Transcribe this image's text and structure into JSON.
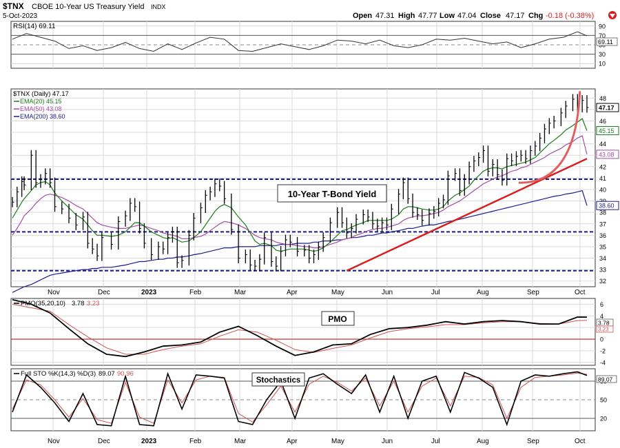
{
  "header": {
    "symbol": "$TNX",
    "name": "CBOE 10-Year US Treasury Yield",
    "exchange": "INDX",
    "date": "5-Oct-2023",
    "open_label": "Open",
    "open": "47.31",
    "high_label": "High",
    "high": "47.77",
    "low_label": "Low",
    "low": "47.04",
    "close_label": "Close",
    "close": "47.17",
    "chg_label": "Chg",
    "chg": "-0.18 (-0.38%)"
  },
  "colors": {
    "grid": "#d9d9d9",
    "frame": "#333333",
    "price": "#000000",
    "ema20": "#1a7a1a",
    "ema50": "#a64ca6",
    "ema200": "#1a1a8c",
    "trend": "#d62020",
    "support": "#1a1a8c",
    "pmo_signal": "#d05050",
    "chg_neg": "#d62020"
  },
  "x_axis": {
    "labels": [
      "Nov",
      "Dec",
      "2023",
      "Feb",
      "Mar",
      "Apr",
      "May",
      "Jun",
      "Jul",
      "Aug",
      "Sep",
      "Oct"
    ]
  },
  "rsi_panel": {
    "legend": "RSI(14) 69.11",
    "value_tag": "69.11",
    "ticks": [
      "90",
      "70",
      "50",
      "30",
      "10"
    ]
  },
  "price_panel": {
    "legend_price": "$TNX (Daily) 47.17",
    "legend_ema20": "EMA(20) 45.15",
    "legend_ema50": "EMA(50) 43.08",
    "legend_ema200": "EMA(200) 38.60",
    "annotation": "10-Year T-Bond Yield",
    "tag_close": "47.17",
    "tag_ema20": "45.15",
    "tag_ema50": "43.08",
    "tag_ema200": "38.60",
    "ticks": [
      "48",
      "47",
      "46",
      "45",
      "44",
      "43",
      "42",
      "41",
      "40",
      "39",
      "38",
      "37",
      "36",
      "35",
      "34",
      "33",
      "32"
    ]
  },
  "pmo_panel": {
    "legend_label": "PMO(35,20,10)",
    "legend_v1": "3.78",
    "legend_v2": "3.23",
    "annotation": "PMO",
    "tag1": "3.78",
    "tag2": "3.23",
    "ticks": [
      "6",
      "4",
      "2",
      "0",
      "-2",
      "-4"
    ]
  },
  "sto_panel": {
    "legend_label": "Full STO %K(14,3) %D(3)",
    "legend_v1": "89.07",
    "legend_v2": "90.96",
    "annotation": "Stochastics",
    "tag1": "89.07",
    "ticks": [
      "80",
      "50",
      "20"
    ]
  },
  "chart_data": {
    "type": "line",
    "title": "$TNX CBOE 10-Year US Treasury Yield INDX",
    "price": {
      "name": "$TNX (Daily)",
      "ylim": [
        31.5,
        48.8
      ],
      "x": [
        0,
        2,
        4,
        5,
        8,
        10,
        12,
        14,
        16,
        18,
        21,
        24,
        27,
        30,
        32,
        34,
        36,
        38,
        42,
        45,
        48,
        50,
        52,
        54,
        56,
        59,
        62,
        64,
        66,
        68,
        70,
        72,
        75,
        77,
        80,
        82,
        84,
        86,
        88,
        90,
        93,
        96,
        99,
        101,
        103,
        105,
        107,
        110,
        112,
        114,
        116,
        118,
        121,
        124,
        126,
        128,
        130,
        132,
        135,
        138,
        140,
        142,
        144,
        146,
        149,
        151,
        153,
        155,
        157,
        159,
        161,
        164,
        166,
        168,
        170,
        172,
        174,
        177,
        179,
        181,
        183,
        185,
        188,
        190,
        192,
        194,
        196,
        198,
        200,
        202,
        204,
        206,
        208,
        210,
        212,
        214,
        216,
        218,
        220,
        222,
        224,
        226,
        228,
        230,
        233,
        235,
        238,
        240,
        242,
        244
      ],
      "close": [
        38.9,
        39.8,
        40.7,
        40.4,
        43.0,
        40.6,
        40.9,
        41.4,
        40.6,
        38.5,
        38.3,
        37.5,
        36.9,
        37.6,
        35.3,
        34.8,
        34.2,
        35.8,
        35.2,
        37.2,
        37.7,
        38.8,
        38.5,
        36.6,
        35.3,
        34.3,
        35.0,
        34.8,
        35.8,
        36.3,
        33.6,
        33.8,
        36.0,
        37.5,
        38.4,
        39.5,
        39.8,
        40.5,
        40.3,
        39.2,
        36.5,
        34.0,
        34.3,
        33.4,
        33.3,
        33.9,
        35.8,
        33.7,
        33.3,
        34.6,
        35.6,
        35.4,
        34.6,
        34.7,
        34.0,
        34.3,
        35.0,
        35.8,
        37.1,
        38.0,
        37.1,
        36.2,
        36.6,
        37.4,
        37.8,
        37.6,
        37.0,
        36.8,
        37.1,
        36.9,
        38.3,
        39.6,
        40.6,
        39.2,
        38.0,
        37.8,
        37.3,
        37.9,
        38.1,
        38.8,
        39.1,
        41.2,
        41.4,
        39.9,
        40.9,
        42.0,
        42.5,
        42.8,
        43.4,
        41.6,
        42.2,
        41.3,
        40.8,
        42.7,
        42.5,
        42.9,
        43.0,
        42.7,
        43.4,
        43.8,
        44.5,
        45.3,
        45.8,
        46.0,
        46.7,
        47.3,
        47.9,
        47.2,
        47.8,
        47.17
      ],
      "ema20": [
        37.5,
        38.2,
        38.9,
        39.2,
        39.9,
        40.4,
        40.6,
        40.7,
        40.4,
        39.7,
        39.0,
        38.4,
        37.8,
        37.4,
        36.9,
        36.4,
        36.0,
        36.0,
        35.9,
        36.0,
        36.3,
        36.7,
        37.1,
        37.1,
        36.8,
        36.3,
        36.0,
        35.8,
        35.7,
        35.8,
        35.6,
        35.4,
        35.5,
        35.8,
        36.3,
        36.9,
        37.5,
        38.1,
        38.5,
        38.7,
        38.4,
        37.6,
        36.9,
        36.2,
        35.5,
        35.2,
        35.3,
        35.1,
        34.7,
        34.6,
        34.7,
        34.8,
        34.8,
        34.8,
        34.7,
        34.6,
        34.7,
        34.9,
        35.4,
        36.0,
        36.4,
        36.5,
        36.7,
        36.9,
        37.1,
        37.3,
        37.3,
        37.3,
        37.3,
        37.3,
        37.4,
        37.8,
        38.3,
        38.5,
        38.5,
        38.4,
        38.3,
        38.2,
        38.2,
        38.3,
        38.5,
        39.0,
        39.5,
        39.7,
        40.0,
        40.3,
        40.8,
        41.2,
        41.6,
        41.8,
        41.9,
        41.9,
        41.8,
        42.0,
        42.1,
        42.2,
        42.3,
        42.4,
        42.6,
        42.8,
        43.2,
        43.6,
        44.0,
        44.3,
        44.8,
        45.2,
        45.6,
        45.9,
        46.2,
        45.15
      ],
      "ema50": [
        36.0,
        36.6,
        37.3,
        37.7,
        38.3,
        38.8,
        39.2,
        39.5,
        39.6,
        39.5,
        39.3,
        39.0,
        38.6,
        38.3,
        37.9,
        37.5,
        37.1,
        36.9,
        36.7,
        36.6,
        36.6,
        36.7,
        36.8,
        36.9,
        36.8,
        36.6,
        36.4,
        36.2,
        36.1,
        36.0,
        35.9,
        35.7,
        35.7,
        35.8,
        35.9,
        36.1,
        36.4,
        36.7,
        37.0,
        37.2,
        37.1,
        36.9,
        36.6,
        36.3,
        36.0,
        35.8,
        35.7,
        35.6,
        35.4,
        35.3,
        35.2,
        35.2,
        35.1,
        35.0,
        35.0,
        34.9,
        34.9,
        35.0,
        35.2,
        35.4,
        35.6,
        35.7,
        35.8,
        36.0,
        36.2,
        36.4,
        36.5,
        36.6,
        36.6,
        36.7,
        36.8,
        37.0,
        37.3,
        37.5,
        37.6,
        37.7,
        37.7,
        37.8,
        37.9,
        38.0,
        38.2,
        38.5,
        38.8,
        39.0,
        39.3,
        39.6,
        39.9,
        40.2,
        40.5,
        40.7,
        40.9,
        41.1,
        41.2,
        41.4,
        41.6,
        41.7,
        41.9,
        42.0,
        42.2,
        42.4,
        42.6,
        42.8,
        43.1,
        43.3,
        43.6,
        43.9,
        44.2,
        44.5,
        44.7,
        43.08
      ],
      "ema200": [
        31.0,
        31.2,
        31.4,
        31.5,
        31.7,
        31.9,
        32.1,
        32.3,
        32.5,
        32.6,
        32.7,
        32.8,
        32.9,
        33.0,
        33.0,
        33.1,
        33.1,
        33.2,
        33.2,
        33.3,
        33.4,
        33.5,
        33.6,
        33.7,
        33.7,
        33.8,
        33.9,
        33.9,
        34.0,
        34.0,
        34.1,
        34.1,
        34.2,
        34.3,
        34.4,
        34.5,
        34.6,
        34.7,
        34.8,
        34.9,
        34.9,
        35.0,
        35.0,
        35.0,
        35.0,
        35.1,
        35.1,
        35.1,
        35.1,
        35.2,
        35.2,
        35.2,
        35.3,
        35.3,
        35.3,
        35.4,
        35.4,
        35.5,
        35.5,
        35.6,
        35.6,
        35.7,
        35.8,
        35.8,
        35.9,
        36.0,
        36.0,
        36.1,
        36.2,
        36.2,
        36.3,
        36.4,
        36.5,
        36.6,
        36.6,
        36.7,
        36.8,
        36.9,
        36.9,
        37.0,
        37.1,
        37.2,
        37.3,
        37.4,
        37.5,
        37.6,
        37.7,
        37.8,
        37.9,
        38.0,
        38.1,
        38.2,
        38.3,
        38.4,
        38.5,
        38.6,
        38.7,
        38.8,
        38.9,
        39.0,
        39.1,
        39.2,
        39.3,
        39.4,
        39.5,
        39.6,
        39.7,
        39.8,
        39.9,
        38.6
      ],
      "support_levels": [
        40.9,
        36.3,
        32.9
      ],
      "trendline": {
        "from": [
          142,
          32.9
        ],
        "to": [
          244,
          42.7
        ]
      },
      "curve": {
        "from": [
          215,
          40.6
        ],
        "to": [
          241,
          48.6
        ]
      }
    },
    "rsi": {
      "ylim": [
        0,
        100
      ],
      "levels": [
        70,
        50,
        30
      ],
      "x": [
        0,
        6,
        12,
        18,
        24,
        30,
        36,
        42,
        48,
        54,
        60,
        66,
        72,
        78,
        84,
        90,
        96,
        102,
        108,
        114,
        120,
        126,
        132,
        138,
        144,
        150,
        156,
        162,
        168,
        174,
        180,
        186,
        192,
        198,
        204,
        210,
        216,
        222,
        228,
        234,
        240,
        244
      ],
      "values": [
        62,
        74,
        66,
        58,
        42,
        48,
        38,
        44,
        55,
        42,
        36,
        52,
        40,
        54,
        66,
        62,
        38,
        36,
        44,
        52,
        46,
        40,
        48,
        60,
        58,
        52,
        60,
        48,
        44,
        50,
        62,
        60,
        64,
        58,
        52,
        56,
        44,
        52,
        62,
        66,
        78,
        69.11
      ]
    },
    "pmo": {
      "name": "PMO(35,20,10)",
      "ylim": [
        -4.5,
        7
      ],
      "x": [
        0,
        8,
        16,
        24,
        32,
        40,
        48,
        56,
        64,
        72,
        80,
        88,
        96,
        104,
        112,
        120,
        128,
        136,
        144,
        152,
        160,
        168,
        176,
        184,
        192,
        200,
        208,
        216,
        224,
        232,
        240,
        244
      ],
      "pmo": [
        6.8,
        6.0,
        4.5,
        1.8,
        -0.8,
        -2.6,
        -3.0,
        -2.2,
        -1.2,
        -1.0,
        -0.5,
        1.2,
        2.2,
        0.6,
        -1.2,
        -2.8,
        -2.2,
        -1.0,
        -0.8,
        0.8,
        1.8,
        2.0,
        2.4,
        3.0,
        2.6,
        3.0,
        3.2,
        3.0,
        2.6,
        2.6,
        3.8,
        3.78
      ],
      "signal": [
        6.0,
        5.4,
        4.8,
        2.5,
        0.4,
        -1.5,
        -2.6,
        -2.6,
        -1.8,
        -1.2,
        -0.8,
        0.5,
        1.6,
        1.2,
        -0.2,
        -1.8,
        -2.3,
        -1.6,
        -1.0,
        0.2,
        1.3,
        1.8,
        2.1,
        2.5,
        2.5,
        2.8,
        3.0,
        3.0,
        2.7,
        2.6,
        3.2,
        3.23
      ]
    },
    "stochastics": {
      "name": "Full STO %K(14,3) %D(3)",
      "ylim": [
        0,
        100
      ],
      "x": [
        0,
        6,
        12,
        18,
        24,
        30,
        36,
        42,
        48,
        54,
        60,
        66,
        72,
        78,
        84,
        90,
        96,
        102,
        108,
        114,
        120,
        126,
        132,
        138,
        144,
        150,
        156,
        162,
        168,
        174,
        180,
        186,
        192,
        198,
        204,
        210,
        216,
        222,
        228,
        234,
        240,
        244
      ],
      "k": [
        30,
        90,
        70,
        45,
        15,
        60,
        10,
        8,
        88,
        10,
        8,
        92,
        35,
        90,
        88,
        85,
        15,
        10,
        50,
        80,
        20,
        85,
        92,
        75,
        60,
        90,
        30,
        88,
        20,
        80,
        88,
        30,
        94,
        85,
        70,
        10,
        80,
        90,
        88,
        92,
        95,
        89.07
      ],
      "d": [
        35,
        82,
        74,
        50,
        22,
        52,
        18,
        12,
        78,
        22,
        12,
        82,
        45,
        82,
        88,
        86,
        28,
        14,
        42,
        72,
        30,
        75,
        88,
        78,
        64,
        85,
        40,
        80,
        30,
        72,
        85,
        40,
        88,
        86,
        74,
        20,
        70,
        86,
        88,
        90,
        93,
        90.96
      ]
    }
  }
}
